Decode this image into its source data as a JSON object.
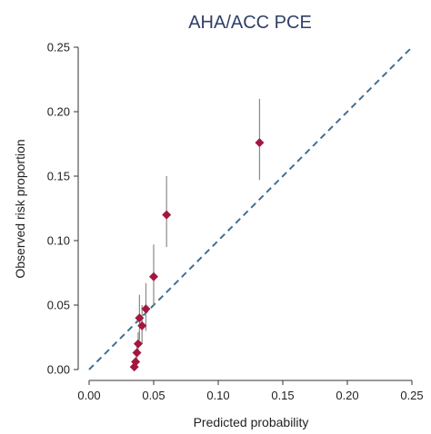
{
  "chart_data": {
    "type": "scatter",
    "title": "AHA/ACC PCE",
    "xlabel": "Predicted probability",
    "ylabel": "Observed risk proportion",
    "xlim": [
      0,
      0.25
    ],
    "ylim": [
      0,
      0.25
    ],
    "xticks": [
      "0.00",
      "0.05",
      "0.10",
      "0.15",
      "0.20",
      "0.25"
    ],
    "yticks": [
      "0.00",
      "0.05",
      "0.10",
      "0.15",
      "0.20",
      "0.25"
    ],
    "grid": false,
    "reference_line": {
      "x": [
        0,
        0.25
      ],
      "y": [
        0,
        0.25
      ],
      "style": "dashed"
    },
    "points": [
      {
        "x": 0.035,
        "y": 0.002,
        "ylow": 0.0,
        "yhigh": 0.006
      },
      {
        "x": 0.036,
        "y": 0.006,
        "ylow": 0.002,
        "yhigh": 0.01
      },
      {
        "x": 0.037,
        "y": 0.013,
        "ylow": 0.006,
        "yhigh": 0.02
      },
      {
        "x": 0.038,
        "y": 0.02,
        "ylow": 0.012,
        "yhigh": 0.029
      },
      {
        "x": 0.039,
        "y": 0.04,
        "ylow": 0.023,
        "yhigh": 0.058
      },
      {
        "x": 0.041,
        "y": 0.034,
        "ylow": 0.02,
        "yhigh": 0.05
      },
      {
        "x": 0.044,
        "y": 0.047,
        "ylow": 0.03,
        "yhigh": 0.067
      },
      {
        "x": 0.05,
        "y": 0.072,
        "ylow": 0.05,
        "yhigh": 0.097
      },
      {
        "x": 0.06,
        "y": 0.12,
        "ylow": 0.095,
        "yhigh": 0.15
      },
      {
        "x": 0.132,
        "y": 0.176,
        "ylow": 0.147,
        "yhigh": 0.21
      }
    ],
    "colors": {
      "marker": "#a3173e",
      "errorbar": "#8a8a8a",
      "reference": "#3f6f96",
      "title": "#2f3f66",
      "axis": "#333333"
    }
  }
}
